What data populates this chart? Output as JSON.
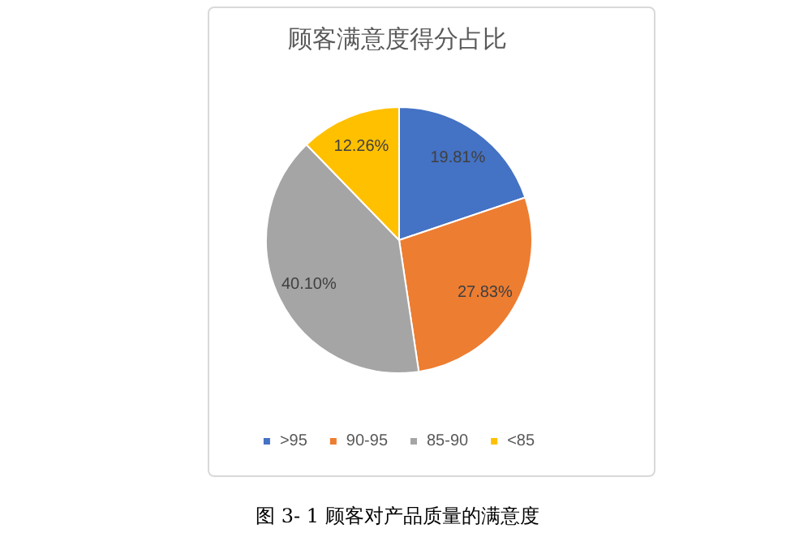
{
  "chart_data": {
    "type": "pie",
    "title": "顾客满意度得分占比",
    "categories": [
      ">95",
      "90-95",
      "85-90",
      "<85"
    ],
    "values": [
      19.81,
      27.83,
      40.1,
      12.26
    ],
    "colors": [
      "#4472c4",
      "#ed7d31",
      "#a5a5a5",
      "#ffc000"
    ],
    "value_labels": [
      "19.81%",
      "27.83%",
      "40.10%",
      "12.26%"
    ],
    "legend": "bottom",
    "annotations": [
      "图  3- 1  顾客对产品质量的满意度"
    ]
  }
}
